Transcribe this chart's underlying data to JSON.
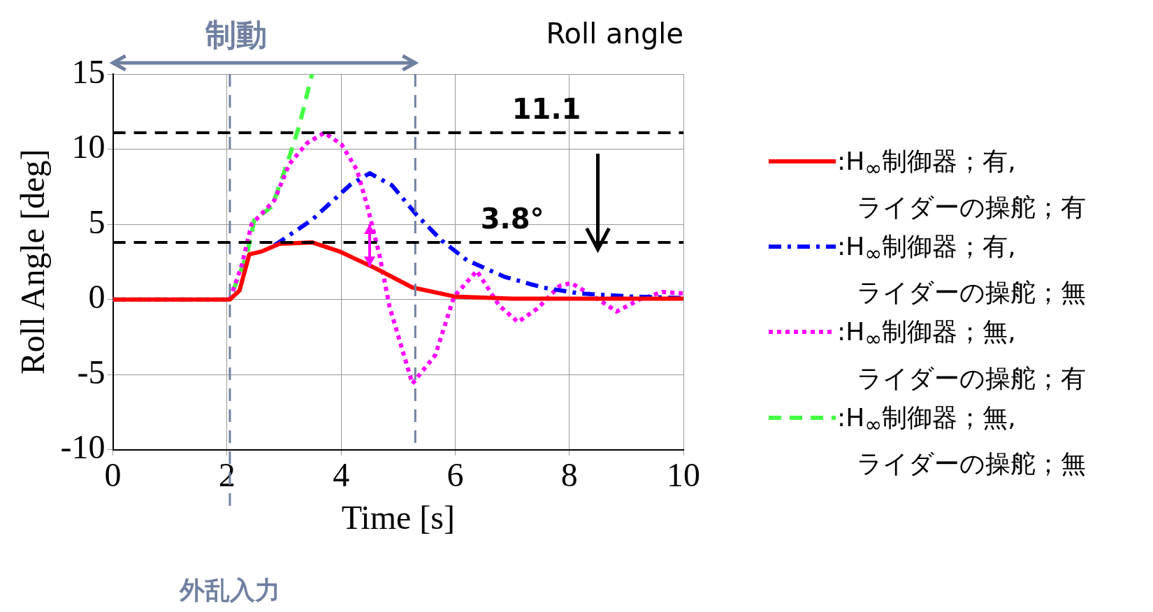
{
  "chart_data": {
    "type": "line",
    "title": "Roll angle",
    "xlabel": "Time [s]",
    "ylabel": "Roll Angle [deg]",
    "xlim": [
      0,
      10
    ],
    "xticks": [
      0,
      2,
      4,
      6,
      8,
      10
    ],
    "ylim": [
      -10,
      15
    ],
    "yticks": [
      -10,
      -5,
      0,
      5,
      10,
      15
    ],
    "grid": true,
    "legend": "right",
    "series": [
      {
        "name": ":H$_{∞}$制御器；有,\nライダーの操舵；有",
        "color": "#ff0000",
        "line_style": "solid",
        "x": [
          0,
          2.05,
          2.22,
          2.39,
          2.61,
          2.92,
          3.49,
          3.97,
          4.59,
          5.25,
          5.99,
          7,
          8,
          9,
          10
        ],
        "values": [
          0,
          0,
          0.6,
          3.0,
          3.2,
          3.7,
          3.8,
          3.2,
          2.1,
          0.8,
          0.2,
          0.05,
          0.05,
          0.05,
          0.05
        ]
      },
      {
        "name": ":H$_{∞}$制御器；有,\nライダーの操舵；無",
        "color": "#0000ff",
        "line_style": "dashdot",
        "x": [
          2.83,
          3.49,
          4.15,
          4.5,
          4.89,
          5.33,
          5.77,
          6.21,
          6.87,
          7.53,
          8.18,
          9.06,
          10
        ],
        "values": [
          3.6,
          5.3,
          7.6,
          8.4,
          7.6,
          5.6,
          3.9,
          2.6,
          1.5,
          0.8,
          0.4,
          0.2,
          0.1
        ]
      },
      {
        "name": ":H$_{∞}$制御器；無,\nライダーの操舵；有",
        "color": "#ff00ff",
        "line_style": "dotted",
        "x": [
          0,
          2.05,
          2.26,
          2.43,
          2.83,
          3.09,
          3.4,
          3.71,
          4.01,
          4.28,
          4.46,
          4.67,
          4.85,
          5.25,
          5.65,
          5.98,
          6.38,
          6.77,
          7.1,
          7.44,
          7.83,
          8.03,
          8.43,
          8.83,
          9.23,
          9.63,
          10
        ],
        "values": [
          0,
          0,
          2.3,
          5.0,
          6.6,
          9.0,
          10.4,
          11.1,
          10.3,
          8.6,
          6.2,
          3.0,
          -0.5,
          -5.6,
          -3.7,
          0.2,
          1.9,
          -0.4,
          -1.5,
          -0.6,
          0.9,
          1.1,
          0.2,
          -0.8,
          0,
          0.5,
          0.4
        ]
      },
      {
        "name": ":H$_{∞}$制御器；無,\nライダーの操舵；無",
        "color": "#44ff44",
        "line_style": "dashed",
        "x": [
          0,
          2.05,
          2.35,
          2.48,
          2.79,
          3.05,
          3.27,
          3.49
        ],
        "values": [
          0,
          0,
          3.0,
          5.3,
          6.2,
          9.0,
          11.6,
          15
        ]
      }
    ],
    "ref_lines": [
      {
        "axis": "x",
        "value": 2.05,
        "label": "外乱入力",
        "color": "#7080a0",
        "line_style": "dashed"
      },
      {
        "axis": "x",
        "value": 5.3,
        "color": "#7080a0",
        "line_style": "dashed"
      },
      {
        "axis": "y",
        "value": 11.1,
        "color": "#000000",
        "line_style": "dashed"
      },
      {
        "axis": "y",
        "value": 3.8,
        "color": "#000000",
        "line_style": "dashed"
      }
    ],
    "annotations": [
      {
        "text": "11.1",
        "x": 7.6,
        "y": 11.1
      },
      {
        "text": "3.8°",
        "x": 7.0,
        "y": 3.8
      },
      "制動"
    ]
  }
}
